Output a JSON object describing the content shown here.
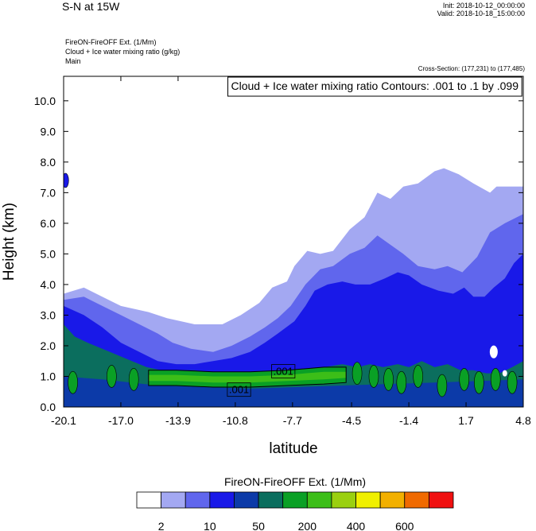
{
  "header": {
    "title": "S-N at 15W",
    "init": "Init: 2018-10-12_00:00:00",
    "valid": "Valid: 2018-10-18_15:00:00",
    "sub1": "FireON-FireOFF Ext.   (1/Mm)",
    "sub2": "Cloud + Ice water mixing ratio   (g/kg)",
    "sub3": "Main",
    "cross_section": "Cross-Section: (177,231) to (177,485)"
  },
  "chart_data": {
    "type": "heatmap",
    "title": "S-N at 15W",
    "field": "FireON-FireOFF Ext. (1/Mm)",
    "contour_field": "Cloud + Ice water mixing ratio (g/kg)",
    "contour_info": "Cloud + Ice water mixing ratio Contours: .001 to .1 by .099",
    "contour_labels": [
      ".001",
      ".001"
    ],
    "xlabel": "latitude",
    "ylabel": "Height (km)",
    "xlim": [
      -20.1,
      4.8
    ],
    "ylim": [
      0.0,
      10.8
    ],
    "x_ticks": [
      "-20.1",
      "-17.0",
      "-13.9",
      "-10.8",
      "-7.7",
      "-4.5",
      "-1.4",
      "1.7",
      "4.8"
    ],
    "y_ticks": [
      "0.0",
      "1.0",
      "2.0",
      "3.0",
      "4.0",
      "5.0",
      "6.0",
      "7.0",
      "8.0",
      "9.0",
      "10.0"
    ],
    "colorbar": {
      "title": "FireON-FireOFF Ext.  (1/Mm)",
      "colors": [
        "#ffffff",
        "#a3a8f2",
        "#6066ed",
        "#1919e8",
        "#0c3aa8",
        "#0b6e5e",
        "#0aa025",
        "#3cbe18",
        "#9ad010",
        "#f0f000",
        "#f2b000",
        "#f06a00",
        "#f01010"
      ],
      "labels": [
        "2",
        "10",
        "50",
        "200",
        "400",
        "600"
      ]
    },
    "layers": {
      "light_top": [
        [
          -20.1,
          3.7
        ],
        [
          -19.0,
          3.9
        ],
        [
          -17.0,
          3.3
        ],
        [
          -15.5,
          3.1
        ],
        [
          -14.5,
          2.9
        ],
        [
          -13.0,
          2.7
        ],
        [
          -11.5,
          2.7
        ],
        [
          -10.5,
          3.0
        ],
        [
          -9.5,
          3.4
        ],
        [
          -8.8,
          3.9
        ],
        [
          -8.0,
          4.1
        ],
        [
          -7.6,
          4.6
        ],
        [
          -6.9,
          5.1
        ],
        [
          -6.2,
          5.0
        ],
        [
          -5.5,
          5.1
        ],
        [
          -4.6,
          5.8
        ],
        [
          -3.8,
          6.2
        ],
        [
          -3.1,
          7.0
        ],
        [
          -2.4,
          6.8
        ],
        [
          -1.7,
          7.2
        ],
        [
          -0.9,
          7.3
        ],
        [
          0.0,
          7.7
        ],
        [
          0.5,
          7.8
        ],
        [
          1.3,
          7.6
        ],
        [
          2.1,
          7.3
        ],
        [
          3.0,
          7.0
        ],
        [
          3.7,
          7.4
        ],
        [
          4.4,
          7.5
        ],
        [
          4.8,
          7.7
        ]
      ],
      "mid_top": [
        [
          -20.1,
          3.5
        ],
        [
          -19.0,
          3.6
        ],
        [
          -18.0,
          3.3
        ],
        [
          -17.0,
          3.0
        ],
        [
          -16.0,
          2.7
        ],
        [
          -15.0,
          2.4
        ],
        [
          -14.2,
          2.1
        ],
        [
          -13.2,
          1.9
        ],
        [
          -12.0,
          1.8
        ],
        [
          -11.0,
          2.0
        ],
        [
          -10.0,
          2.3
        ],
        [
          -9.2,
          2.6
        ],
        [
          -8.5,
          2.9
        ],
        [
          -7.8,
          3.3
        ],
        [
          -7.0,
          4.0
        ],
        [
          -6.2,
          4.5
        ],
        [
          -5.5,
          4.6
        ],
        [
          -4.6,
          5.0
        ],
        [
          -3.8,
          5.2
        ],
        [
          -3.1,
          5.6
        ],
        [
          -2.4,
          5.3
        ],
        [
          -1.7,
          5.0
        ],
        [
          -0.9,
          4.6
        ],
        [
          0.0,
          4.5
        ],
        [
          0.7,
          4.6
        ],
        [
          1.5,
          4.4
        ],
        [
          2.3,
          4.9
        ],
        [
          3.0,
          5.7
        ],
        [
          3.8,
          6.0
        ],
        [
          4.8,
          6.3
        ]
      ],
      "blue_top": [
        [
          -20.1,
          3.3
        ],
        [
          -19.0,
          3.0
        ],
        [
          -18.0,
          2.6
        ],
        [
          -17.0,
          2.1
        ],
        [
          -16.0,
          1.8
        ],
        [
          -15.0,
          1.5
        ],
        [
          -14.0,
          1.4
        ],
        [
          -13.0,
          1.4
        ],
        [
          -12.0,
          1.5
        ],
        [
          -11.0,
          1.6
        ],
        [
          -10.0,
          1.8
        ],
        [
          -9.2,
          2.1
        ],
        [
          -8.5,
          2.4
        ],
        [
          -7.6,
          2.8
        ],
        [
          -7.0,
          3.3
        ],
        [
          -6.5,
          3.8
        ],
        [
          -5.8,
          4.0
        ],
        [
          -5.0,
          4.1
        ],
        [
          -4.3,
          4.0
        ],
        [
          -3.5,
          4.0
        ],
        [
          -2.7,
          4.2
        ],
        [
          -2.0,
          4.4
        ],
        [
          -1.4,
          4.3
        ],
        [
          -0.7,
          4.0
        ],
        [
          0.2,
          3.8
        ],
        [
          1.0,
          3.7
        ],
        [
          1.6,
          3.9
        ],
        [
          2.1,
          3.6
        ],
        [
          2.7,
          3.6
        ],
        [
          3.2,
          3.9
        ],
        [
          3.8,
          4.2
        ],
        [
          4.3,
          4.7
        ],
        [
          4.8,
          5.0
        ]
      ],
      "green_top": [
        [
          -20.1,
          2.7
        ],
        [
          -19.5,
          2.3
        ],
        [
          -18.8,
          2.1
        ],
        [
          -18.0,
          1.9
        ],
        [
          -17.2,
          1.7
        ],
        [
          -16.4,
          1.5
        ],
        [
          -15.6,
          1.3
        ],
        [
          -14.8,
          1.2
        ],
        [
          -14.0,
          1.2
        ],
        [
          -13.0,
          1.2
        ],
        [
          -12.0,
          1.1
        ],
        [
          -11.0,
          1.1
        ],
        [
          -10.0,
          1.1
        ],
        [
          -9.0,
          1.1
        ],
        [
          -8.0,
          1.2
        ],
        [
          -7.0,
          1.2
        ],
        [
          -6.0,
          1.3
        ],
        [
          -5.0,
          1.4
        ],
        [
          -4.2,
          1.3
        ],
        [
          -3.5,
          1.4
        ],
        [
          -2.8,
          1.3
        ],
        [
          -2.0,
          1.4
        ],
        [
          -1.4,
          1.3
        ],
        [
          -0.7,
          1.5
        ],
        [
          0.0,
          1.3
        ],
        [
          0.7,
          1.4
        ],
        [
          1.4,
          1.2
        ],
        [
          2.1,
          1.2
        ],
        [
          2.8,
          1.1
        ],
        [
          3.5,
          1.1
        ],
        [
          4.2,
          1.3
        ],
        [
          4.8,
          1.5
        ]
      ],
      "band_top": [
        [
          -15.5,
          1.2
        ],
        [
          -14.0,
          1.2
        ],
        [
          -12.0,
          1.15
        ],
        [
          -10.0,
          1.15
        ],
        [
          -8.0,
          1.2
        ],
        [
          -6.0,
          1.3
        ],
        [
          -4.8,
          1.3
        ]
      ],
      "band_bottom": [
        [
          -15.5,
          0.7
        ],
        [
          -14.0,
          0.7
        ],
        [
          -12.0,
          0.65
        ],
        [
          -10.0,
          0.65
        ],
        [
          -8.0,
          0.7
        ],
        [
          -6.0,
          0.75
        ],
        [
          -4.8,
          0.8
        ]
      ],
      "white_gaps": [
        [
          -6.9,
          7.5,
          -5.5,
          9.2
        ],
        [
          3.3,
          7.2,
          4.8,
          9.0
        ]
      ]
    }
  }
}
